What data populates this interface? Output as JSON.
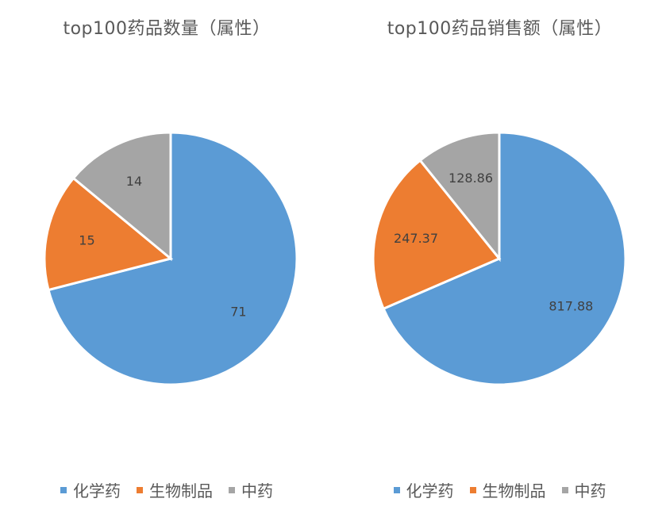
{
  "colors": {
    "化学药": "#5b9bd5",
    "生物制品": "#ed7d31",
    "中药": "#a5a5a5"
  },
  "chart_data": [
    {
      "type": "pie",
      "title": "top100药品数量（属性）",
      "categories": [
        "化学药",
        "生物制品",
        "中药"
      ],
      "values": [
        71,
        15,
        14
      ],
      "labels": [
        "71",
        "15",
        "14"
      ],
      "legend": "bottom"
    },
    {
      "type": "pie",
      "title": "top100药品销售额（属性）",
      "categories": [
        "化学药",
        "生物制品",
        "中药"
      ],
      "values": [
        817.88,
        247.37,
        128.86
      ],
      "labels": [
        "817.88",
        "247.37",
        "128.86"
      ],
      "legend": "bottom"
    }
  ]
}
